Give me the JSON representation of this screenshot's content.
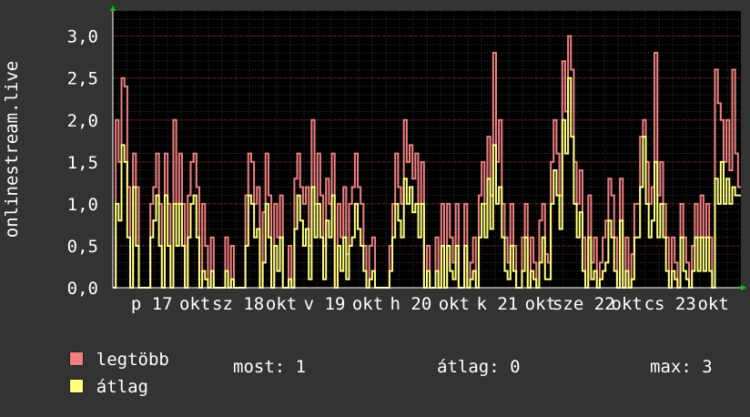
{
  "chart_data": {
    "type": "line",
    "ylabel": "onlinestream.live",
    "ylim": [
      0,
      3.3
    ],
    "yticks": [
      "0,0",
      "0,5",
      "1,0",
      "1,5",
      "2,0",
      "2,5",
      "3,0"
    ],
    "ytick_values": [
      0,
      0.5,
      1.0,
      1.5,
      2.0,
      2.5,
      3.0
    ],
    "xticks": [
      "p 17",
      "okt",
      "sz 18",
      "okt",
      "v 19",
      "okt",
      "h 20",
      "okt",
      "k 21",
      "okt",
      "sze 22",
      "okt",
      "cs 23",
      "okt"
    ],
    "xtick_positions": [
      0.0,
      0.5,
      1.0,
      1.5,
      2.0,
      2.5,
      3.0,
      3.5,
      4.0,
      4.5,
      5.0,
      5.5,
      6.0,
      6.5
    ],
    "x_range": [
      -0.45,
      6.82
    ],
    "grid": true,
    "series": [
      {
        "name": "legtöbb",
        "color": "#f08080",
        "values": [
          0,
          2,
          1.5,
          2.5,
          2.4,
          1.2,
          0,
          1.6,
          1.2,
          0,
          0,
          0,
          0,
          1,
          1.2,
          1.6,
          1,
          0,
          1.6,
          1,
          0,
          2,
          1,
          1.6,
          1,
          0,
          1.1,
          1.5,
          1.6,
          1.2,
          0,
          1,
          0.5,
          0,
          0.6,
          0,
          0,
          0,
          0,
          0.6,
          0,
          0.5,
          0,
          0,
          0,
          0,
          1.1,
          1.6,
          1.5,
          1,
          1.2,
          0,
          0.9,
          1.6,
          1.1,
          0,
          1,
          0.6,
          1.1,
          0,
          0,
          0.5,
          0,
          1.3,
          1.6,
          1.2,
          1,
          1.2,
          0.5,
          2,
          1,
          1.6,
          1.1,
          0.5,
          1.3,
          1,
          1.6,
          0,
          1,
          0.6,
          1.2,
          0.4,
          1,
          1.2,
          1.6,
          1.2,
          1,
          0.5,
          0,
          0.5,
          0.6,
          0,
          0,
          0,
          0,
          0,
          0.5,
          1,
          1.6,
          1.2,
          1,
          2,
          1.5,
          1.7,
          1.3,
          1.6,
          1,
          1.5,
          0,
          0.5,
          0,
          0,
          0.6,
          0,
          1,
          0,
          1,
          0.6,
          0.3,
          1,
          0,
          0,
          1,
          0,
          0.3,
          0.6,
          0,
          1.1,
          1.5,
          1,
          1.8,
          1.1,
          2.8,
          1.5,
          2,
          1,
          0.6,
          0.3,
          1,
          0.5,
          0,
          0,
          0.6,
          1,
          0,
          0.6,
          0.3,
          0,
          0.8,
          1,
          0.4,
          0.3,
          1.5,
          2,
          1.6,
          1.1,
          2.7,
          2.1,
          3,
          2.6,
          1.5,
          1,
          1.4,
          0.6,
          0,
          1.1,
          0.3,
          0.6,
          0,
          0.3,
          0.6,
          0.8,
          1.3,
          1.1,
          0.6,
          0,
          1.3,
          0,
          0.6,
          0,
          0.4,
          1,
          1,
          1.8,
          2,
          1.5,
          1,
          1.2,
          2.8,
          1.1,
          1.5,
          1,
          0.6,
          0,
          0.6,
          0.3,
          0,
          1,
          0.6,
          0.3,
          0,
          0.5,
          1,
          0.6,
          1.1,
          0.6,
          1,
          0.6,
          0,
          2.6,
          2.2,
          2,
          1.5,
          2,
          1.4,
          2.6,
          1.6,
          1.2
        ]
      },
      {
        "name": "átlag",
        "color": "#ffff80",
        "values": [
          0,
          1,
          0.8,
          1.7,
          1.5,
          0.6,
          0,
          1.2,
          0.5,
          0,
          0,
          0,
          0,
          0.6,
          0.8,
          1.1,
          0.5,
          0,
          1.1,
          0.5,
          0,
          1,
          0.5,
          1,
          0.5,
          0,
          0.6,
          1,
          1.1,
          0.6,
          0,
          0.2,
          0.1,
          0,
          0.2,
          0,
          0,
          0,
          0,
          0.2,
          0,
          0.1,
          0,
          0,
          0,
          0,
          0.5,
          1.1,
          1,
          0.6,
          0.7,
          0,
          0.3,
          1,
          0.6,
          0,
          0.5,
          0.2,
          0.6,
          0,
          0,
          0.1,
          0,
          0.7,
          1.1,
          0.8,
          0.5,
          0.7,
          0.1,
          1.2,
          0.6,
          1,
          0.6,
          0.1,
          0.8,
          0.6,
          1.1,
          0,
          0.5,
          0.2,
          0.6,
          0.1,
          0.5,
          0.6,
          1,
          0.7,
          0.5,
          0.2,
          0,
          0.1,
          0.2,
          0,
          0,
          0,
          0,
          0,
          0.2,
          0.6,
          1,
          0.8,
          0.6,
          1.3,
          1,
          1.2,
          0.9,
          1,
          0.6,
          1,
          0,
          0.2,
          0,
          0,
          0.2,
          0,
          0.5,
          0,
          0.5,
          0.2,
          0.1,
          0.5,
          0,
          0,
          0.5,
          0,
          0.1,
          0.2,
          0,
          0.6,
          1,
          0.6,
          1.3,
          0.7,
          1.7,
          1,
          1.2,
          0.6,
          0.2,
          0.1,
          0.5,
          0.2,
          0,
          0,
          0.2,
          0.6,
          0,
          0.2,
          0.1,
          0,
          0.3,
          0.6,
          0.1,
          0.1,
          1,
          1.4,
          1.1,
          0.7,
          2,
          1.6,
          2.5,
          1.8,
          1,
          0.6,
          0.9,
          0.2,
          0,
          0.6,
          0.1,
          0.2,
          0,
          0.1,
          0.2,
          0.3,
          0.8,
          0.6,
          0.2,
          0,
          0.8,
          0,
          0.2,
          0,
          0.1,
          0.6,
          0.6,
          1.2,
          1.8,
          1,
          0.6,
          0.8,
          1.5,
          0.6,
          1,
          0.6,
          0.2,
          0,
          0.2,
          0.1,
          0,
          0.6,
          0.2,
          0.1,
          0,
          0.2,
          0.6,
          0.2,
          0.6,
          0.2,
          0.6,
          0.2,
          0,
          1.3,
          1,
          1.5,
          1,
          1.3,
          1,
          1.2,
          1.1,
          1.1
        ]
      }
    ]
  },
  "legend": [
    {
      "label": "legtöbb",
      "color": "#f08080"
    },
    {
      "label": "átlag",
      "color": "#ffff80"
    }
  ],
  "stats": {
    "most": "most: 1",
    "atlag": "átlag: 0",
    "max": "max: 3"
  }
}
